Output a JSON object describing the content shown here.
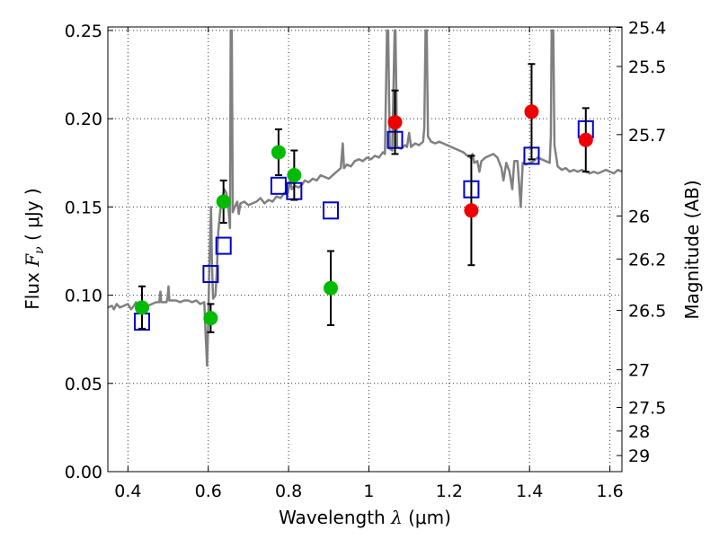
{
  "chart_data": {
    "type": "scatter",
    "title": "",
    "xlabel": {
      "prefix": "Wavelength ",
      "symbol": "λ",
      "unit": " (μm)"
    },
    "ylabel": {
      "prefix": "Flux ",
      "symbol": "F",
      "subscript": "ν",
      "unit": " ( μJy )"
    },
    "ylabel_right": "Magnitude (AB)",
    "xlim": [
      0.35,
      1.63
    ],
    "ylim": [
      0.0,
      0.252
    ],
    "grid": true,
    "x_ticks": [
      {
        "value": 0.4,
        "label": "0.4"
      },
      {
        "value": 0.6,
        "label": "0.6"
      },
      {
        "value": 0.8,
        "label": "0.8"
      },
      {
        "value": 1.0,
        "label": "1"
      },
      {
        "value": 1.2,
        "label": "1.2"
      },
      {
        "value": 1.4,
        "label": "1.4"
      },
      {
        "value": 1.6,
        "label": "1.6"
      }
    ],
    "y_ticks": [
      {
        "value": 0.0,
        "label": "0.00"
      },
      {
        "value": 0.05,
        "label": "0.05"
      },
      {
        "value": 0.1,
        "label": "0.10"
      },
      {
        "value": 0.15,
        "label": "0.15"
      },
      {
        "value": 0.2,
        "label": "0.20"
      },
      {
        "value": 0.25,
        "label": "0.25"
      }
    ],
    "right_ticks": [
      {
        "label": "25.4",
        "flux": 0.2517
      },
      {
        "label": "25.5",
        "flux": 0.2296
      },
      {
        "label": "25.7",
        "flux": 0.191
      },
      {
        "label": "26",
        "flux": 0.1449
      },
      {
        "label": "26.2",
        "flux": 0.1205
      },
      {
        "label": "26.5",
        "flux": 0.0914
      },
      {
        "label": "27",
        "flux": 0.0577
      },
      {
        "label": "27.5",
        "flux": 0.0364
      },
      {
        "label": "28",
        "flux": 0.023
      },
      {
        "label": "29",
        "flux": 0.0091
      }
    ],
    "colors": {
      "spectrum": "#808080",
      "green": "#00bb00",
      "red": "#ee0000",
      "model": "#0000cc",
      "errorbar": "#000000",
      "grid": "#000000"
    },
    "series": [
      {
        "kind": "model-bandpass",
        "marker": "open-square",
        "color": "#0000cc",
        "points": [
          {
            "x": 0.435,
            "y": 0.085
          },
          {
            "x": 0.606,
            "y": 0.112
          },
          {
            "x": 0.638,
            "y": 0.128
          },
          {
            "x": 0.775,
            "y": 0.162
          },
          {
            "x": 0.814,
            "y": 0.159
          },
          {
            "x": 0.905,
            "y": 0.148
          },
          {
            "x": 1.065,
            "y": 0.188
          },
          {
            "x": 1.255,
            "y": 0.16
          },
          {
            "x": 1.405,
            "y": 0.179
          },
          {
            "x": 1.54,
            "y": 0.194
          }
        ]
      },
      {
        "kind": "observed",
        "marker": "filled-circle",
        "color": "#00bb00",
        "points": [
          {
            "x": 0.435,
            "y": 0.093,
            "err": 0.012
          },
          {
            "x": 0.606,
            "y": 0.087,
            "err": 0.008
          },
          {
            "x": 0.638,
            "y": 0.153,
            "err": 0.012
          },
          {
            "x": 0.775,
            "y": 0.181,
            "err": 0.013
          },
          {
            "x": 0.814,
            "y": 0.168,
            "err": 0.014
          },
          {
            "x": 0.905,
            "y": 0.104,
            "err": 0.021
          }
        ]
      },
      {
        "kind": "observed",
        "marker": "filled-circle",
        "color": "#ee0000",
        "points": [
          {
            "x": 1.065,
            "y": 0.198,
            "err": 0.018
          },
          {
            "x": 1.255,
            "y": 0.148,
            "err": 0.031
          },
          {
            "x": 1.405,
            "y": 0.204,
            "err": 0.027
          },
          {
            "x": 1.54,
            "y": 0.188,
            "err": 0.018
          }
        ]
      },
      {
        "kind": "template-spectrum",
        "color": "#808080",
        "points": [
          [
            0.35,
            0.093
          ],
          [
            0.36,
            0.094
          ],
          [
            0.365,
            0.092
          ],
          [
            0.372,
            0.095
          ],
          [
            0.38,
            0.093
          ],
          [
            0.39,
            0.094
          ],
          [
            0.4,
            0.095
          ],
          [
            0.408,
            0.092
          ],
          [
            0.415,
            0.094
          ],
          [
            0.42,
            0.096
          ],
          [
            0.43,
            0.094
          ],
          [
            0.44,
            0.093
          ],
          [
            0.45,
            0.094
          ],
          [
            0.46,
            0.095
          ],
          [
            0.47,
            0.096
          ],
          [
            0.478,
            0.096
          ],
          [
            0.481,
            0.102
          ],
          [
            0.483,
            0.096
          ],
          [
            0.49,
            0.096
          ],
          [
            0.496,
            0.096
          ],
          [
            0.499,
            0.099
          ],
          [
            0.501,
            0.105
          ],
          [
            0.503,
            0.097
          ],
          [
            0.51,
            0.097
          ],
          [
            0.52,
            0.097
          ],
          [
            0.53,
            0.096
          ],
          [
            0.54,
            0.097
          ],
          [
            0.55,
            0.097
          ],
          [
            0.56,
            0.096
          ],
          [
            0.57,
            0.097
          ],
          [
            0.58,
            0.095
          ],
          [
            0.59,
            0.096
          ],
          [
            0.593,
            0.08
          ],
          [
            0.597,
            0.06
          ],
          [
            0.6,
            0.085
          ],
          [
            0.603,
            0.12
          ],
          [
            0.605,
            0.135
          ],
          [
            0.607,
            0.15
          ],
          [
            0.609,
            0.12
          ],
          [
            0.612,
            0.098
          ],
          [
            0.618,
            0.1
          ],
          [
            0.622,
            0.118
          ],
          [
            0.625,
            0.136
          ],
          [
            0.63,
            0.148
          ],
          [
            0.635,
            0.155
          ],
          [
            0.64,
            0.16
          ],
          [
            0.645,
            0.158
          ],
          [
            0.65,
            0.15
          ],
          [
            0.654,
            0.138
          ],
          [
            0.656,
            0.25
          ],
          [
            0.6585,
            0.25
          ],
          [
            0.661,
            0.147
          ],
          [
            0.666,
            0.15
          ],
          [
            0.672,
            0.153
          ],
          [
            0.676,
            0.146
          ],
          [
            0.68,
            0.152
          ],
          [
            0.69,
            0.153
          ],
          [
            0.7,
            0.151
          ],
          [
            0.71,
            0.152
          ],
          [
            0.72,
            0.153
          ],
          [
            0.73,
            0.155
          ],
          [
            0.74,
            0.152
          ],
          [
            0.75,
            0.154
          ],
          [
            0.76,
            0.153
          ],
          [
            0.77,
            0.156
          ],
          [
            0.78,
            0.155
          ],
          [
            0.79,
            0.158
          ],
          [
            0.797,
            0.157
          ],
          [
            0.8,
            0.16
          ],
          [
            0.804,
            0.165
          ],
          [
            0.808,
            0.16
          ],
          [
            0.815,
            0.162
          ],
          [
            0.825,
            0.161
          ],
          [
            0.835,
            0.163
          ],
          [
            0.84,
            0.165
          ],
          [
            0.85,
            0.164
          ],
          [
            0.86,
            0.166
          ],
          [
            0.87,
            0.165
          ],
          [
            0.88,
            0.168
          ],
          [
            0.89,
            0.167
          ],
          [
            0.9,
            0.166
          ],
          [
            0.91,
            0.168
          ],
          [
            0.92,
            0.17
          ],
          [
            0.93,
            0.172
          ],
          [
            0.935,
            0.186
          ],
          [
            0.938,
            0.172
          ],
          [
            0.945,
            0.174
          ],
          [
            0.955,
            0.173
          ],
          [
            0.965,
            0.176
          ],
          [
            0.975,
            0.177
          ],
          [
            0.985,
            0.176
          ],
          [
            0.995,
            0.178
          ],
          [
            1.005,
            0.177
          ],
          [
            1.015,
            0.179
          ],
          [
            1.025,
            0.178
          ],
          [
            1.035,
            0.181
          ],
          [
            1.04,
            0.18
          ],
          [
            1.045,
            0.25
          ],
          [
            1.048,
            0.25
          ],
          [
            1.052,
            0.183
          ],
          [
            1.058,
            0.182
          ],
          [
            1.064,
            0.25
          ],
          [
            1.066,
            0.25
          ],
          [
            1.07,
            0.184
          ],
          [
            1.08,
            0.183
          ],
          [
            1.09,
            0.185
          ],
          [
            1.095,
            0.184
          ],
          [
            1.1,
            0.192
          ],
          [
            1.105,
            0.184
          ],
          [
            1.115,
            0.186
          ],
          [
            1.125,
            0.185
          ],
          [
            1.135,
            0.187
          ],
          [
            1.138,
            0.195
          ],
          [
            1.141,
            0.25
          ],
          [
            1.144,
            0.25
          ],
          [
            1.147,
            0.19
          ],
          [
            1.155,
            0.187
          ],
          [
            1.165,
            0.186
          ],
          [
            1.175,
            0.187
          ],
          [
            1.185,
            0.186
          ],
          [
            1.195,
            0.185
          ],
          [
            1.205,
            0.184
          ],
          [
            1.215,
            0.183
          ],
          [
            1.225,
            0.182
          ],
          [
            1.235,
            0.181
          ],
          [
            1.245,
            0.179
          ],
          [
            1.252,
            0.178
          ],
          [
            1.258,
            0.18
          ],
          [
            1.262,
            0.175
          ],
          [
            1.27,
            0.176
          ],
          [
            1.275,
            0.17
          ],
          [
            1.28,
            0.176
          ],
          [
            1.29,
            0.178
          ],
          [
            1.3,
            0.179
          ],
          [
            1.31,
            0.18
          ],
          [
            1.32,
            0.178
          ],
          [
            1.33,
            0.172
          ],
          [
            1.335,
            0.165
          ],
          [
            1.342,
            0.175
          ],
          [
            1.35,
            0.17
          ],
          [
            1.357,
            0.16
          ],
          [
            1.362,
            0.176
          ],
          [
            1.37,
            0.176
          ],
          [
            1.378,
            0.15
          ],
          [
            1.383,
            0.175
          ],
          [
            1.39,
            0.174
          ],
          [
            1.4,
            0.175
          ],
          [
            1.41,
            0.176
          ],
          [
            1.42,
            0.178
          ],
          [
            1.43,
            0.177
          ],
          [
            1.44,
            0.176
          ],
          [
            1.45,
            0.175
          ],
          [
            1.453,
            0.19
          ],
          [
            1.455,
            0.25
          ],
          [
            1.459,
            0.25
          ],
          [
            1.462,
            0.185
          ],
          [
            1.47,
            0.173
          ],
          [
            1.48,
            0.171
          ],
          [
            1.49,
            0.172
          ],
          [
            1.5,
            0.17
          ],
          [
            1.51,
            0.171
          ],
          [
            1.52,
            0.17
          ],
          [
            1.53,
            0.171
          ],
          [
            1.54,
            0.17
          ],
          [
            1.55,
            0.169
          ],
          [
            1.56,
            0.17
          ],
          [
            1.57,
            0.169
          ],
          [
            1.58,
            0.17
          ],
          [
            1.59,
            0.171
          ],
          [
            1.6,
            0.17
          ],
          [
            1.61,
            0.169
          ],
          [
            1.62,
            0.171
          ],
          [
            1.63,
            0.17
          ]
        ]
      }
    ]
  }
}
